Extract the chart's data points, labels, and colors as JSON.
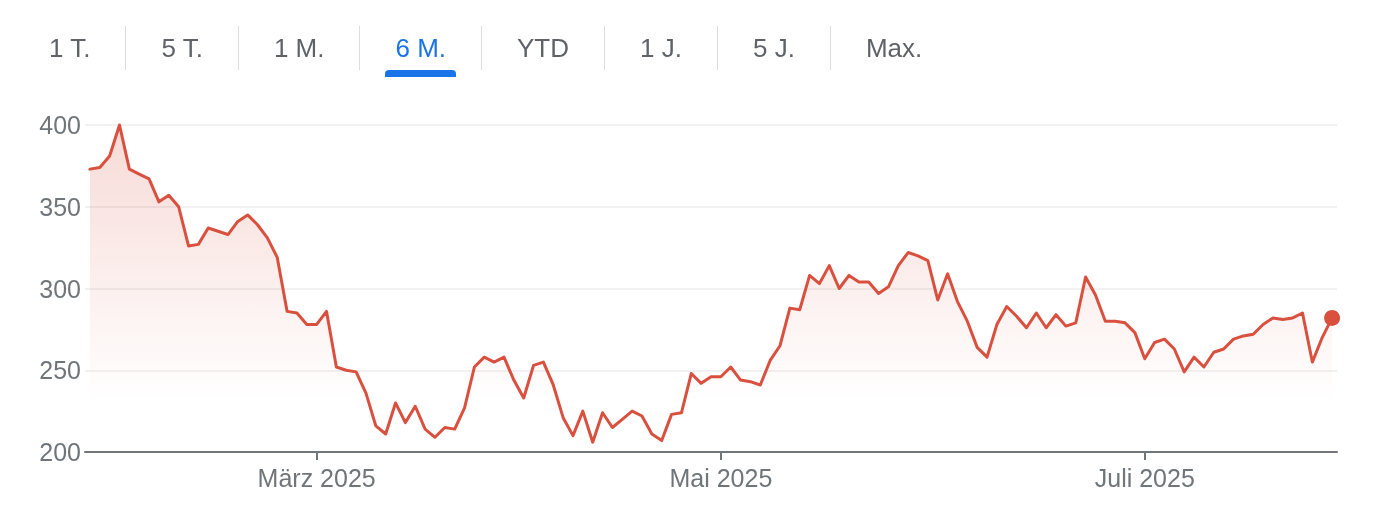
{
  "chart_data": {
    "type": "area",
    "annotations": [
      "1 T.",
      "5 T.",
      "1 M.",
      "6 M.",
      "YTD",
      "1 J.",
      "5 J.",
      "Max."
    ],
    "categories": [
      null,
      null,
      null,
      null,
      null,
      null,
      null,
      null,
      null,
      null,
      null,
      null,
      null,
      null,
      null,
      null,
      null,
      null,
      null,
      null,
      null,
      null,
      null,
      "März 2025",
      null,
      null,
      null,
      null,
      null,
      null,
      null,
      null,
      null,
      null,
      null,
      null,
      null,
      null,
      null,
      null,
      null,
      null,
      null,
      null,
      null,
      null,
      null,
      null,
      null,
      null,
      null,
      null,
      null,
      null,
      null,
      null,
      null,
      null,
      null,
      null,
      null,
      null,
      null,
      null,
      "Mai 2025",
      null,
      null,
      null,
      null,
      null,
      null,
      null,
      null,
      null,
      null,
      null,
      null,
      null,
      null,
      null,
      null,
      null,
      null,
      null,
      null,
      null,
      null,
      null,
      null,
      null,
      null,
      null,
      null,
      null,
      null,
      null,
      null,
      null,
      null,
      null,
      null,
      null,
      null,
      null,
      null,
      null,
      null,
      "Juli 2025",
      null,
      null,
      null,
      null,
      null,
      null,
      null,
      null,
      null,
      null,
      null,
      null,
      null,
      null,
      null,
      null,
      null,
      null,
      null
    ],
    "series": [
      {
        "color": "#d9503f",
        "values": [
          373,
          374,
          381,
          400,
          373,
          370,
          367,
          353,
          357,
          350,
          326,
          327,
          337,
          335,
          333,
          341,
          345,
          339,
          331,
          319,
          286,
          285,
          278,
          278,
          286,
          252,
          250,
          249,
          236,
          216,
          211,
          230,
          218,
          228,
          214,
          209,
          215,
          214,
          227,
          252,
          258,
          255,
          258,
          244,
          233,
          253,
          255,
          241,
          221,
          210,
          225,
          206,
          224,
          215,
          220,
          225,
          222,
          211,
          207,
          223,
          224,
          248,
          242,
          246,
          246,
          252,
          244,
          243,
          241,
          256,
          265,
          288,
          287,
          308,
          303,
          314,
          300,
          308,
          304,
          304,
          297,
          301,
          314,
          322,
          320,
          317,
          293,
          309,
          292,
          280,
          264,
          258,
          278,
          289,
          283,
          276,
          285,
          276,
          284,
          277,
          279,
          307,
          296,
          280,
          280,
          279,
          273,
          257,
          267,
          269,
          263,
          249,
          258,
          252,
          261,
          263,
          269,
          271,
          272,
          278,
          282,
          281,
          282,
          285,
          255,
          270,
          282
        ]
      },
      {
        "type": "scatter",
        "color": "#d9503f",
        "marker": "circle",
        "values": [
          null,
          null,
          null,
          null,
          null,
          null,
          null,
          null,
          null,
          null,
          null,
          null,
          null,
          null,
          null,
          null,
          null,
          null,
          null,
          null,
          null,
          null,
          null,
          null,
          null,
          null,
          null,
          null,
          null,
          null,
          null,
          null,
          null,
          null,
          null,
          null,
          null,
          null,
          null,
          null,
          null,
          null,
          null,
          null,
          null,
          null,
          null,
          null,
          null,
          null,
          null,
          null,
          null,
          null,
          null,
          null,
          null,
          null,
          null,
          null,
          null,
          null,
          null,
          null,
          null,
          null,
          null,
          null,
          null,
          null,
          null,
          null,
          null,
          null,
          null,
          null,
          null,
          null,
          null,
          null,
          null,
          null,
          null,
          null,
          null,
          null,
          null,
          null,
          null,
          null,
          null,
          null,
          null,
          null,
          null,
          null,
          null,
          null,
          null,
          null,
          null,
          null,
          null,
          null,
          null,
          null,
          null,
          null,
          null,
          null,
          null,
          null,
          null,
          null,
          null,
          null,
          null,
          null,
          null,
          null,
          null,
          null,
          null,
          null,
          null,
          null,
          282
        ]
      }
    ],
    "ylim": [
      200,
      400
    ],
    "yticks": [
      200,
      250,
      300,
      350,
      400
    ],
    "grid": "y"
  }
}
